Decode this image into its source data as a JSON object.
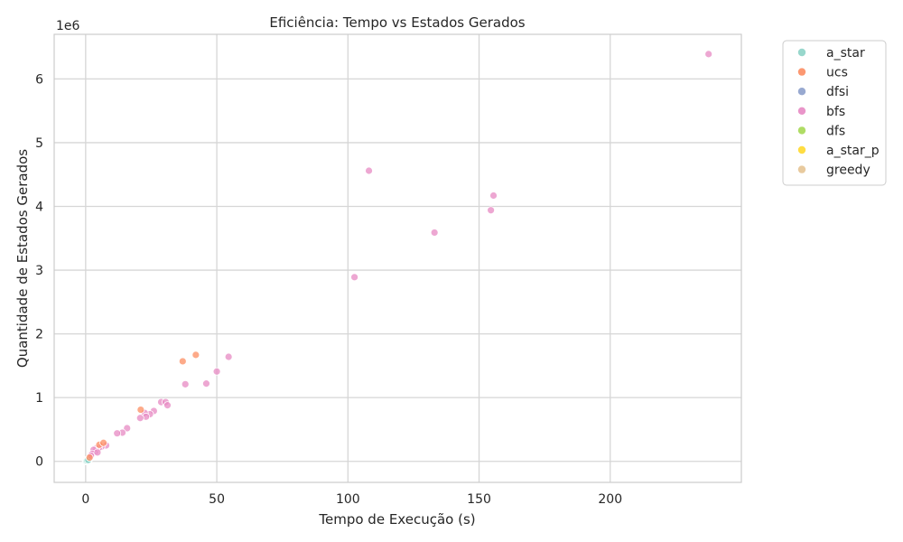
{
  "chart_data": {
    "type": "scatter",
    "title": "Eficiência: Tempo vs Estados Gerados",
    "xlabel": "Tempo de Execução (s)",
    "ylabel": "Quantidade de Estados Gerados",
    "y_scale_label": "1e6",
    "xlim": [
      -12,
      250
    ],
    "ylim": [
      -330000,
      6700000
    ],
    "x_ticks": [
      0,
      50,
      100,
      150,
      200
    ],
    "x_tick_labels": [
      "0",
      "50",
      "100",
      "150",
      "200"
    ],
    "y_ticks": [
      0,
      1000000,
      2000000,
      3000000,
      4000000,
      5000000,
      6000000
    ],
    "y_tick_labels": [
      "0",
      "1",
      "2",
      "3",
      "4",
      "5",
      "6"
    ],
    "grid": true,
    "legend_position": "outside-right",
    "series": [
      {
        "name": "a_star",
        "color": "#8dd3c7",
        "points": [
          [
            0.1,
            2000
          ],
          [
            0.3,
            8000
          ],
          [
            0.6,
            15000
          ],
          [
            1.0,
            22000
          ]
        ]
      },
      {
        "name": "ucs",
        "color": "#fc8d62",
        "points": [
          [
            5.2,
            260000
          ],
          [
            6.8,
            290000
          ],
          [
            21.0,
            810000
          ],
          [
            37.0,
            1570000
          ],
          [
            42.0,
            1670000
          ],
          [
            1.5,
            60000
          ]
        ]
      },
      {
        "name": "dfsi",
        "color": "#8da0cb",
        "points": [
          [
            0.4,
            5000
          ],
          [
            0.8,
            12000
          ],
          [
            1.2,
            30000
          ]
        ]
      },
      {
        "name": "bfs",
        "color": "#e78ac3",
        "points": [
          [
            237.5,
            6390000
          ],
          [
            108.0,
            4560000
          ],
          [
            155.5,
            4170000
          ],
          [
            154.5,
            3940000
          ],
          [
            133.0,
            3590000
          ],
          [
            102.5,
            2890000
          ],
          [
            54.5,
            1640000
          ],
          [
            50.0,
            1410000
          ],
          [
            46.0,
            1220000
          ],
          [
            38.0,
            1210000
          ],
          [
            28.8,
            930000
          ],
          [
            30.5,
            930000
          ],
          [
            31.2,
            880000
          ],
          [
            26.0,
            790000
          ],
          [
            24.5,
            740000
          ],
          [
            22.5,
            760000
          ],
          [
            23.0,
            700000
          ],
          [
            20.8,
            680000
          ],
          [
            15.8,
            520000
          ],
          [
            14.0,
            450000
          ],
          [
            12.0,
            440000
          ],
          [
            7.8,
            250000
          ],
          [
            6.0,
            230000
          ],
          [
            5.0,
            210000
          ],
          [
            4.0,
            200000
          ],
          [
            3.5,
            150000
          ],
          [
            3.0,
            180000
          ],
          [
            2.5,
            120000
          ],
          [
            2.0,
            90000
          ],
          [
            4.5,
            140000
          ]
        ]
      },
      {
        "name": "dfs",
        "color": "#a6d854",
        "points": [
          [
            0.2,
            3000
          ],
          [
            0.5,
            9000
          ]
        ]
      },
      {
        "name": "a_star_p",
        "color": "#ffd92f",
        "points": [
          [
            0.3,
            4000
          ],
          [
            0.9,
            14000
          ]
        ]
      },
      {
        "name": "greedy",
        "color": "#e5c494",
        "points": [
          [
            0.1,
            1000
          ],
          [
            0.6,
            6000
          ],
          [
            1.4,
            40000
          ],
          [
            0.2,
            20000
          ]
        ]
      }
    ]
  }
}
